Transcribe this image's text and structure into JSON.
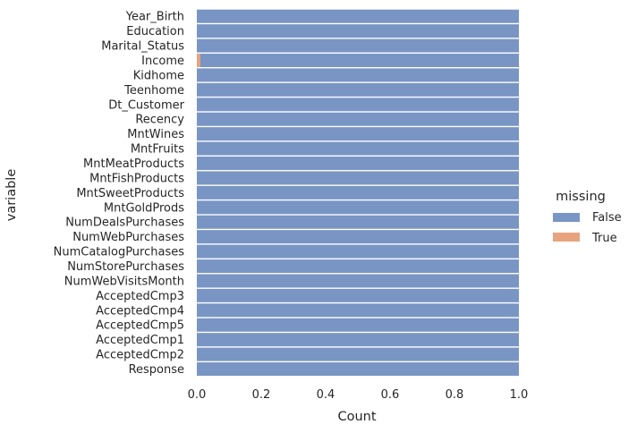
{
  "chart_data": {
    "type": "bar",
    "orientation": "horizontal",
    "stacked": true,
    "categories": [
      "Year_Birth",
      "Education",
      "Marital_Status",
      "Income",
      "Kidhome",
      "Teenhome",
      "Dt_Customer",
      "Recency",
      "MntWines",
      "MntFruits",
      "MntMeatProducts",
      "MntFishProducts",
      "MntSweetProducts",
      "MntGoldProds",
      "NumDealsPurchases",
      "NumWebPurchases",
      "NumCatalogPurchases",
      "NumStorePurchases",
      "NumWebVisitsMonth",
      "AcceptedCmp3",
      "AcceptedCmp4",
      "AcceptedCmp5",
      "AcceptedCmp1",
      "AcceptedCmp2",
      "Response"
    ],
    "series": [
      {
        "name": "True",
        "color": "#dd8452",
        "values": [
          0,
          0,
          0,
          0.011,
          0,
          0,
          0,
          0,
          0,
          0,
          0,
          0,
          0,
          0,
          0,
          0,
          0,
          0,
          0,
          0,
          0,
          0,
          0,
          0,
          0
        ]
      },
      {
        "name": "False",
        "color": "#4c72b0",
        "values": [
          1,
          1,
          1,
          0.989,
          1,
          1,
          1,
          1,
          1,
          1,
          1,
          1,
          1,
          1,
          1,
          1,
          1,
          1,
          1,
          1,
          1,
          1,
          1,
          1,
          1
        ]
      }
    ],
    "xlabel": "Count",
    "ylabel": "variable",
    "xlim": [
      0,
      1
    ],
    "xticks": [
      "0.0",
      "0.2",
      "0.4",
      "0.6",
      "0.8",
      "1.0"
    ],
    "legend": {
      "title": "missing",
      "entries": [
        "False",
        "True"
      ],
      "placement": "right"
    },
    "grid": false
  }
}
